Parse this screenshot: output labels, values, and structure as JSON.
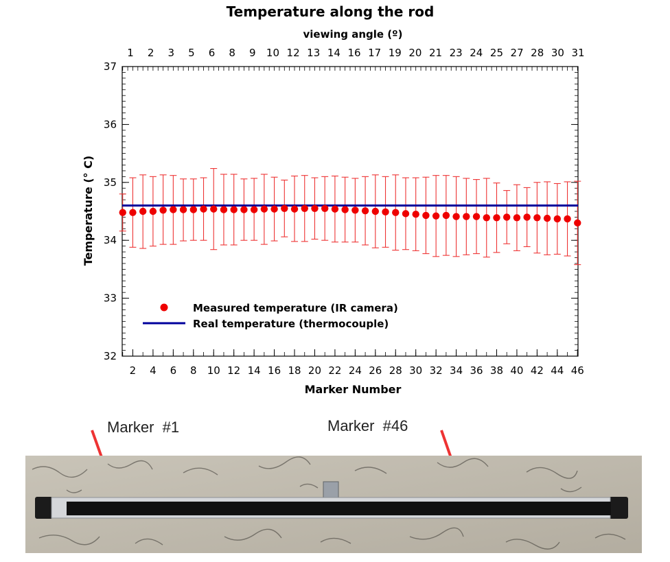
{
  "chart_data": {
    "type": "scatter",
    "title": "Temperature along the rod",
    "xlabel": "Marker Number",
    "ylabel": "Temperature (° C)",
    "top_axis_label": "viewing angle (º)",
    "xlim": [
      1,
      46
    ],
    "ylim": [
      32,
      37
    ],
    "y_ticks": [
      32,
      33,
      34,
      35,
      36,
      37
    ],
    "x_ticks": [
      2,
      4,
      6,
      8,
      10,
      12,
      14,
      16,
      18,
      20,
      22,
      24,
      26,
      28,
      30,
      32,
      34,
      36,
      38,
      40,
      42,
      44,
      46
    ],
    "top_ticks": [
      "1",
      "2",
      "3",
      "5",
      "6",
      "8",
      "9",
      "10",
      "12",
      "13",
      "14",
      "16",
      "17",
      "19",
      "20",
      "21",
      "23",
      "24",
      "25",
      "27",
      "28",
      "30",
      "31"
    ],
    "grid": false,
    "legend_position": "bottom-left",
    "series": [
      {
        "name": "Measured temperature (IR camera)",
        "color": "#ee0000",
        "x": [
          1,
          2,
          3,
          4,
          5,
          6,
          7,
          8,
          9,
          10,
          11,
          12,
          13,
          14,
          15,
          16,
          17,
          18,
          19,
          20,
          21,
          22,
          23,
          24,
          25,
          26,
          27,
          28,
          29,
          30,
          31,
          32,
          33,
          34,
          35,
          36,
          37,
          38,
          39,
          40,
          41,
          42,
          43,
          44,
          45,
          46
        ],
        "values": [
          34.48,
          34.48,
          34.5,
          34.5,
          34.52,
          34.53,
          34.53,
          34.53,
          34.54,
          34.54,
          34.53,
          34.53,
          34.53,
          34.53,
          34.54,
          34.54,
          34.55,
          34.54,
          34.55,
          34.55,
          34.55,
          34.54,
          34.53,
          34.52,
          34.51,
          34.5,
          34.49,
          34.48,
          34.46,
          34.45,
          34.43,
          34.42,
          34.43,
          34.41,
          34.41,
          34.41,
          34.39,
          34.39,
          34.4,
          34.39,
          34.4,
          34.39,
          34.38,
          34.37,
          34.37,
          34.3
        ],
        "err_high": [
          34.8,
          35.08,
          35.13,
          35.1,
          35.13,
          35.12,
          35.06,
          35.06,
          35.08,
          35.24,
          35.14,
          35.14,
          35.06,
          35.07,
          35.14,
          35.09,
          35.04,
          35.11,
          35.12,
          35.08,
          35.1,
          35.11,
          35.09,
          35.07,
          35.1,
          35.13,
          35.1,
          35.13,
          35.08,
          35.08,
          35.09,
          35.12,
          35.12,
          35.1,
          35.07,
          35.05,
          35.07,
          34.99,
          34.86,
          34.96,
          34.91,
          35.0,
          35.01,
          34.98,
          35.01,
          35.02
        ],
        "err_low": [
          34.16,
          33.88,
          33.86,
          33.9,
          33.93,
          33.93,
          33.99,
          34.0,
          34.0,
          33.84,
          33.92,
          33.92,
          34.0,
          34.0,
          33.93,
          33.99,
          34.06,
          33.98,
          33.98,
          34.02,
          34.0,
          33.97,
          33.97,
          33.97,
          33.92,
          33.87,
          33.88,
          33.83,
          33.84,
          33.82,
          33.77,
          33.72,
          33.74,
          33.72,
          33.75,
          33.77,
          33.71,
          33.79,
          33.94,
          33.82,
          33.89,
          33.78,
          33.75,
          33.76,
          33.73,
          33.58
        ]
      },
      {
        "name": "Real temperature (thermocouple)",
        "color": "#00009c",
        "type": "line",
        "values": [
          34.6
        ]
      }
    ]
  },
  "photo": {
    "marker1_label": "Marker  #1",
    "marker46_label": "Marker  #46",
    "arrow_color": "#ee3333"
  }
}
